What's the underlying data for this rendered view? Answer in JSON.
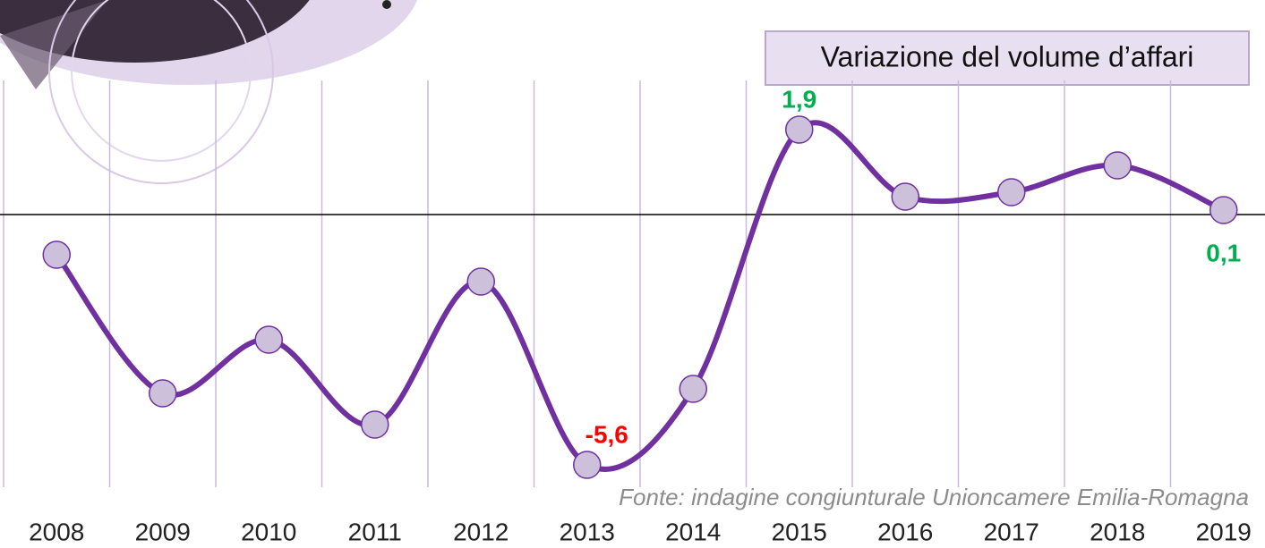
{
  "chart_data": {
    "type": "line",
    "title": "Variazione del volume d’affari",
    "source": "Fonte: indagine congiunturale Unioncamere Emilia-Romagna",
    "categories": [
      "2008",
      "2009",
      "2010",
      "2011",
      "2012",
      "2013",
      "2014",
      "2015",
      "2016",
      "2017",
      "2018",
      "2019"
    ],
    "values": [
      -0.9,
      -4.0,
      -2.8,
      -4.7,
      -1.5,
      -5.6,
      -3.9,
      1.9,
      0.4,
      0.5,
      1.1,
      0.1
    ],
    "value_labels": [
      null,
      null,
      null,
      null,
      null,
      "-5,6",
      null,
      "1,9",
      null,
      null,
      null,
      "0,1"
    ],
    "color": "#7030a0",
    "marker_color": "#ccc0da",
    "positive_label_color": "#00b050",
    "negative_label_color": "#ff0000",
    "ylim": [
      -6.5,
      3
    ],
    "grid": true
  }
}
